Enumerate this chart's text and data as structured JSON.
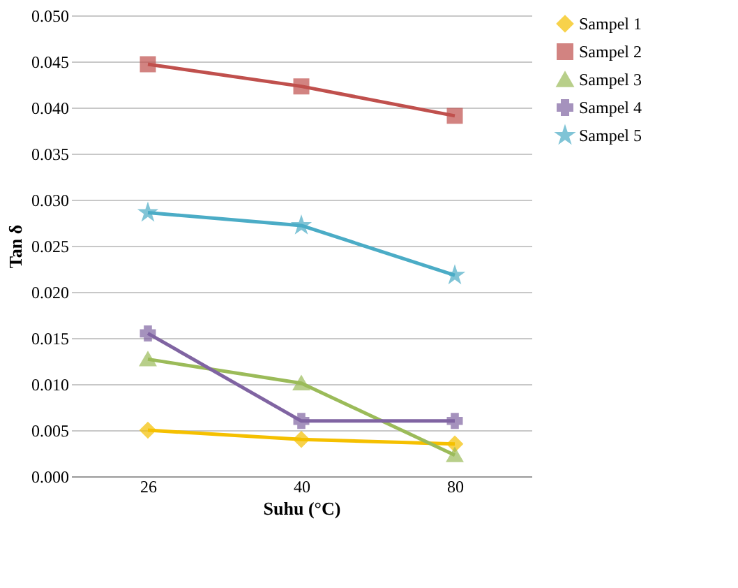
{
  "chart_data": {
    "type": "line",
    "xlabel": "Suhu (°C)",
    "ylabel": "Tan δ",
    "categories": [
      "26",
      "40",
      "80"
    ],
    "series": [
      {
        "name": "Sampel 1",
        "color": "#f5c000",
        "marker": "diamond",
        "values": [
          0.005,
          0.004,
          0.0035
        ]
      },
      {
        "name": "Sampel 2",
        "color": "#c0504d",
        "marker": "square",
        "values": [
          0.0447,
          0.0423,
          0.0391
        ]
      },
      {
        "name": "Sampel 3",
        "color": "#9bbb59",
        "marker": "triangle",
        "values": [
          0.0127,
          0.0101,
          0.0023
        ]
      },
      {
        "name": "Sampel 4",
        "color": "#8064a2",
        "marker": "cross",
        "values": [
          0.0155,
          0.006,
          0.006
        ]
      },
      {
        "name": "Sampel 5",
        "color": "#4bacc6",
        "marker": "star",
        "values": [
          0.0286,
          0.0272,
          0.0218
        ]
      }
    ],
    "ylim": [
      0,
      0.05
    ],
    "yticks": [
      {
        "value": 0,
        "label": "0.000"
      },
      0.005,
      {
        "value": 0.01,
        "label": "0.010"
      },
      0.015,
      {
        "value": 0.02,
        "label": "0.020"
      },
      0.025,
      {
        "value": 0.03,
        "label": "0.030"
      },
      0.035,
      {
        "value": 0.04,
        "label": "0.040"
      },
      0.045,
      {
        "value": 0.05,
        "label": "0.050"
      }
    ],
    "grid": "y",
    "legend": "right"
  }
}
